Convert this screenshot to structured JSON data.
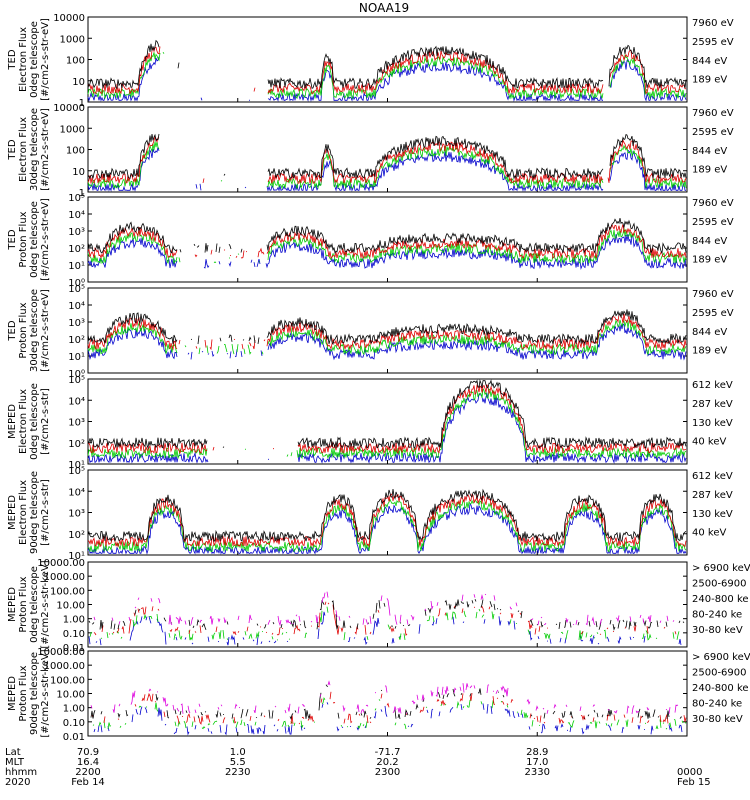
{
  "title": "NOAA19",
  "chart_data": {
    "type": "line",
    "x_ticks": [
      "2200",
      "2230",
      "2300",
      "2330",
      "0000"
    ],
    "footer": {
      "labels": [
        "Lat",
        "MLT",
        "hhmm",
        "2020"
      ],
      "columns": [
        [
          "70.9",
          "16.4",
          "2200",
          "Feb 14"
        ],
        [
          "1.0",
          "5.5",
          "2230",
          ""
        ],
        [
          "-71.7",
          "20.2",
          "2300",
          ""
        ],
        [
          "28.9",
          "17.0",
          "2330",
          ""
        ],
        [
          "",
          "",
          "0000",
          "Feb 15"
        ]
      ]
    },
    "panels": [
      {
        "ylabel": [
          "TED",
          "Electron Flux",
          "0deg telescope",
          "[#/cm2-s-str-eV]"
        ],
        "yscale": "log",
        "ylim": [
          1,
          10000
        ],
        "yticks": [
          "1",
          "10",
          "100",
          "1000",
          "10000"
        ],
        "legend": [
          {
            "label": "7960 eV",
            "color": "#000000"
          },
          {
            "label": "2595 eV",
            "color": "#e00000"
          },
          {
            "label": "844 eV",
            "color": "#00cc00"
          },
          {
            "label": "189 eV",
            "color": "#0000cc"
          }
        ]
      },
      {
        "ylabel": [
          "TED",
          "Electron Flux",
          "30deg telescope",
          "[#/cm2-s-str-eV]"
        ],
        "yscale": "log",
        "ylim": [
          1,
          10000
        ],
        "yticks": [
          "1",
          "10",
          "100",
          "1000",
          "10000"
        ],
        "legend": [
          {
            "label": "7960 eV",
            "color": "#000000"
          },
          {
            "label": "2595 eV",
            "color": "#e00000"
          },
          {
            "label": "844 eV",
            "color": "#00cc00"
          },
          {
            "label": "189 eV",
            "color": "#0000cc"
          }
        ]
      },
      {
        "ylabel": [
          "TED",
          "Proton Flux",
          "0deg telescope",
          "[#/cm2-s-str-eV]"
        ],
        "yscale": "log",
        "ylim": [
          1,
          100000
        ],
        "yticks": [
          "10⁰",
          "10¹",
          "10²",
          "10³",
          "10⁴",
          "10⁵"
        ],
        "legend": [
          {
            "label": "7960 eV",
            "color": "#000000"
          },
          {
            "label": "2595 eV",
            "color": "#e00000"
          },
          {
            "label": "844 eV",
            "color": "#00cc00"
          },
          {
            "label": "189 eV",
            "color": "#0000cc"
          }
        ]
      },
      {
        "ylabel": [
          "TED",
          "Proton Flux",
          "30deg telescope",
          "[#/cm2-s-str-eV]"
        ],
        "yscale": "log",
        "ylim": [
          1,
          100000
        ],
        "yticks": [
          "10⁰",
          "10¹",
          "10²",
          "10³",
          "10⁴",
          "10⁵"
        ],
        "legend": [
          {
            "label": "7960 eV",
            "color": "#000000"
          },
          {
            "label": "2595 eV",
            "color": "#e00000"
          },
          {
            "label": "844 eV",
            "color": "#00cc00"
          },
          {
            "label": "189 eV",
            "color": "#0000cc"
          }
        ]
      },
      {
        "ylabel": [
          "MEPED",
          "Electron Flux",
          "0deg telescope",
          "[#/cm2-s-str]"
        ],
        "yscale": "log",
        "ylim": [
          10,
          100000
        ],
        "yticks": [
          "10¹",
          "10²",
          "10³",
          "10⁴",
          "10⁵"
        ],
        "legend": [
          {
            "label": "612 keV",
            "color": "#000000"
          },
          {
            "label": "287 keV",
            "color": "#e00000"
          },
          {
            "label": "130 keV",
            "color": "#00cc00"
          },
          {
            "label": "40 keV",
            "color": "#0000cc"
          }
        ]
      },
      {
        "ylabel": [
          "MEPED",
          "Electron Flux",
          "90deg telescope",
          "[#/cm2-s-str]"
        ],
        "yscale": "log",
        "ylim": [
          10,
          100000
        ],
        "yticks": [
          "10¹",
          "10²",
          "10³",
          "10⁴",
          "10⁵"
        ],
        "legend": [
          {
            "label": "612 keV",
            "color": "#000000"
          },
          {
            "label": "287 keV",
            "color": "#e00000"
          },
          {
            "label": "130 keV",
            "color": "#00cc00"
          },
          {
            "label": "40 keV",
            "color": "#0000cc"
          }
        ]
      },
      {
        "ylabel": [
          "MEPED",
          "Proton Flux",
          "0deg telescope",
          "[#/cm2-s-str-keV]"
        ],
        "yscale": "log",
        "ylim": [
          0.01,
          10000
        ],
        "yticks": [
          "0.01",
          "0.10",
          "1.00",
          "10.00",
          "100.00",
          "1000.00",
          "10000.00"
        ],
        "legend": [
          {
            "label": "> 6900 keV",
            "color": "#dd00dd"
          },
          {
            "label": "2500-6900",
            "color": "#000000"
          },
          {
            "label": "240-800 ke",
            "color": "#e00000"
          },
          {
            "label": "80-240 ke",
            "color": "#00cc00"
          },
          {
            "label": "30-80 keV",
            "color": "#0000cc"
          }
        ]
      },
      {
        "ylabel": [
          "MEPED",
          "Proton Flux",
          "90deg telescope",
          "[#/cm2-s-str-keV]"
        ],
        "yscale": "log",
        "ylim": [
          0.01,
          10000
        ],
        "yticks": [
          "0.01",
          "0.10",
          "1.00",
          "10.00",
          "100.00",
          "1000.00",
          "10000.00"
        ],
        "legend": [
          {
            "label": "> 6900 keV",
            "color": "#dd00dd"
          },
          {
            "label": "2500-6900",
            "color": "#000000"
          },
          {
            "label": "240-800 ke",
            "color": "#e00000"
          },
          {
            "label": "80-240 ke",
            "color": "#00cc00"
          },
          {
            "label": "30-80 keV",
            "color": "#0000cc"
          }
        ]
      }
    ]
  }
}
